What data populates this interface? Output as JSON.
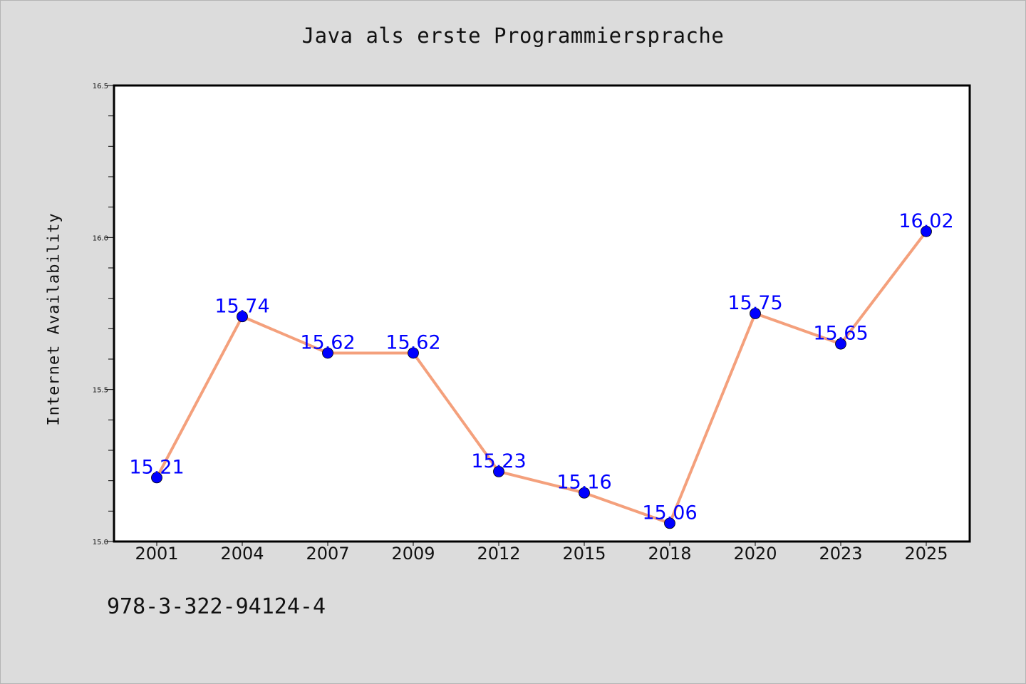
{
  "chart_data": {
    "type": "line",
    "title": "Java als erste Programmiersprache",
    "xlabel": "",
    "ylabel": "Internet Availability",
    "categories": [
      "2001",
      "2004",
      "2007",
      "2009",
      "2012",
      "2015",
      "2018",
      "2020",
      "2023",
      "2025"
    ],
    "series": [
      {
        "values": [
          15.21,
          15.74,
          15.62,
          15.62,
          15.23,
          15.16,
          15.06,
          15.75,
          15.65,
          16.02
        ],
        "labels": [
          "15.21",
          "15.74",
          "15.62",
          "15.62",
          "15.23",
          "15.16",
          "15.06",
          "15.75",
          "15.65",
          "16.02"
        ],
        "line_color": "#f4a07c",
        "marker_color": "#0000ff"
      }
    ],
    "ylim": [
      15.0,
      16.5
    ],
    "yticks": [
      "15.0",
      "15.5",
      "16.0",
      "16.5"
    ],
    "grid": false,
    "legend": "none"
  },
  "footer": {
    "isbn": "978-3-322-94124-4"
  },
  "colors": {
    "background": "#dcdcdc",
    "plot_background": "#ffffff",
    "axis": "#000000",
    "label_text": "#0000ff"
  }
}
